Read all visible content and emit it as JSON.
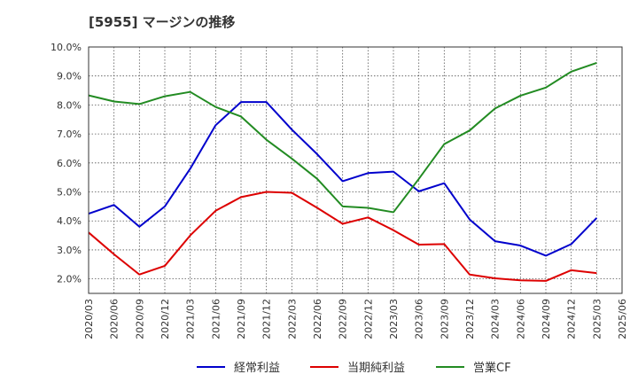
{
  "chart_data": {
    "type": "line",
    "title": "[5955]  マージンの推移",
    "xlabel": "",
    "ylabel": "",
    "x": [
      "2020/03",
      "2020/06",
      "2020/09",
      "2020/12",
      "2021/03",
      "2021/06",
      "2021/09",
      "2021/12",
      "2022/03",
      "2022/06",
      "2022/09",
      "2022/12",
      "2023/03",
      "2023/06",
      "2023/09",
      "2023/12",
      "2024/03",
      "2024/06",
      "2024/09",
      "2024/12",
      "2025/03"
    ],
    "x_ticks": [
      "2020/03",
      "2020/06",
      "2020/09",
      "2020/12",
      "2021/03",
      "2021/06",
      "2021/09",
      "2021/12",
      "2022/03",
      "2022/06",
      "2022/09",
      "2022/12",
      "2023/03",
      "2023/06",
      "2023/09",
      "2023/12",
      "2024/03",
      "2024/06",
      "2024/09",
      "2024/12",
      "2025/03",
      "2025/06"
    ],
    "y_ticks": [
      "2.0%",
      "3.0%",
      "4.0%",
      "5.0%",
      "6.0%",
      "7.0%",
      "8.0%",
      "9.0%",
      "10.0%"
    ],
    "ylim": [
      1.5,
      10.0
    ],
    "grid": true,
    "legend_position": "bottom",
    "series": [
      {
        "name": "経常利益",
        "color": "#0000cc",
        "values": [
          4.25,
          4.55,
          3.8,
          4.5,
          5.8,
          7.3,
          8.1,
          8.1,
          7.15,
          6.3,
          5.37,
          5.65,
          5.7,
          5.02,
          5.3,
          4.05,
          3.3,
          3.15,
          2.8,
          3.2,
          4.1
        ]
      },
      {
        "name": "当期純利益",
        "color": "#dd0000",
        "values": [
          3.6,
          2.85,
          2.15,
          2.45,
          3.5,
          4.35,
          4.82,
          5.0,
          4.97,
          4.45,
          3.9,
          4.12,
          3.68,
          3.18,
          3.2,
          2.15,
          2.02,
          1.95,
          1.93,
          2.3,
          2.2
        ]
      },
      {
        "name": "営業CF",
        "color": "#228b22",
        "values": [
          8.33,
          8.12,
          8.03,
          8.3,
          8.45,
          7.93,
          7.6,
          6.8,
          6.15,
          5.45,
          4.5,
          4.45,
          4.3,
          5.45,
          6.65,
          7.12,
          7.88,
          8.32,
          8.6,
          9.15,
          9.45
        ]
      }
    ]
  }
}
